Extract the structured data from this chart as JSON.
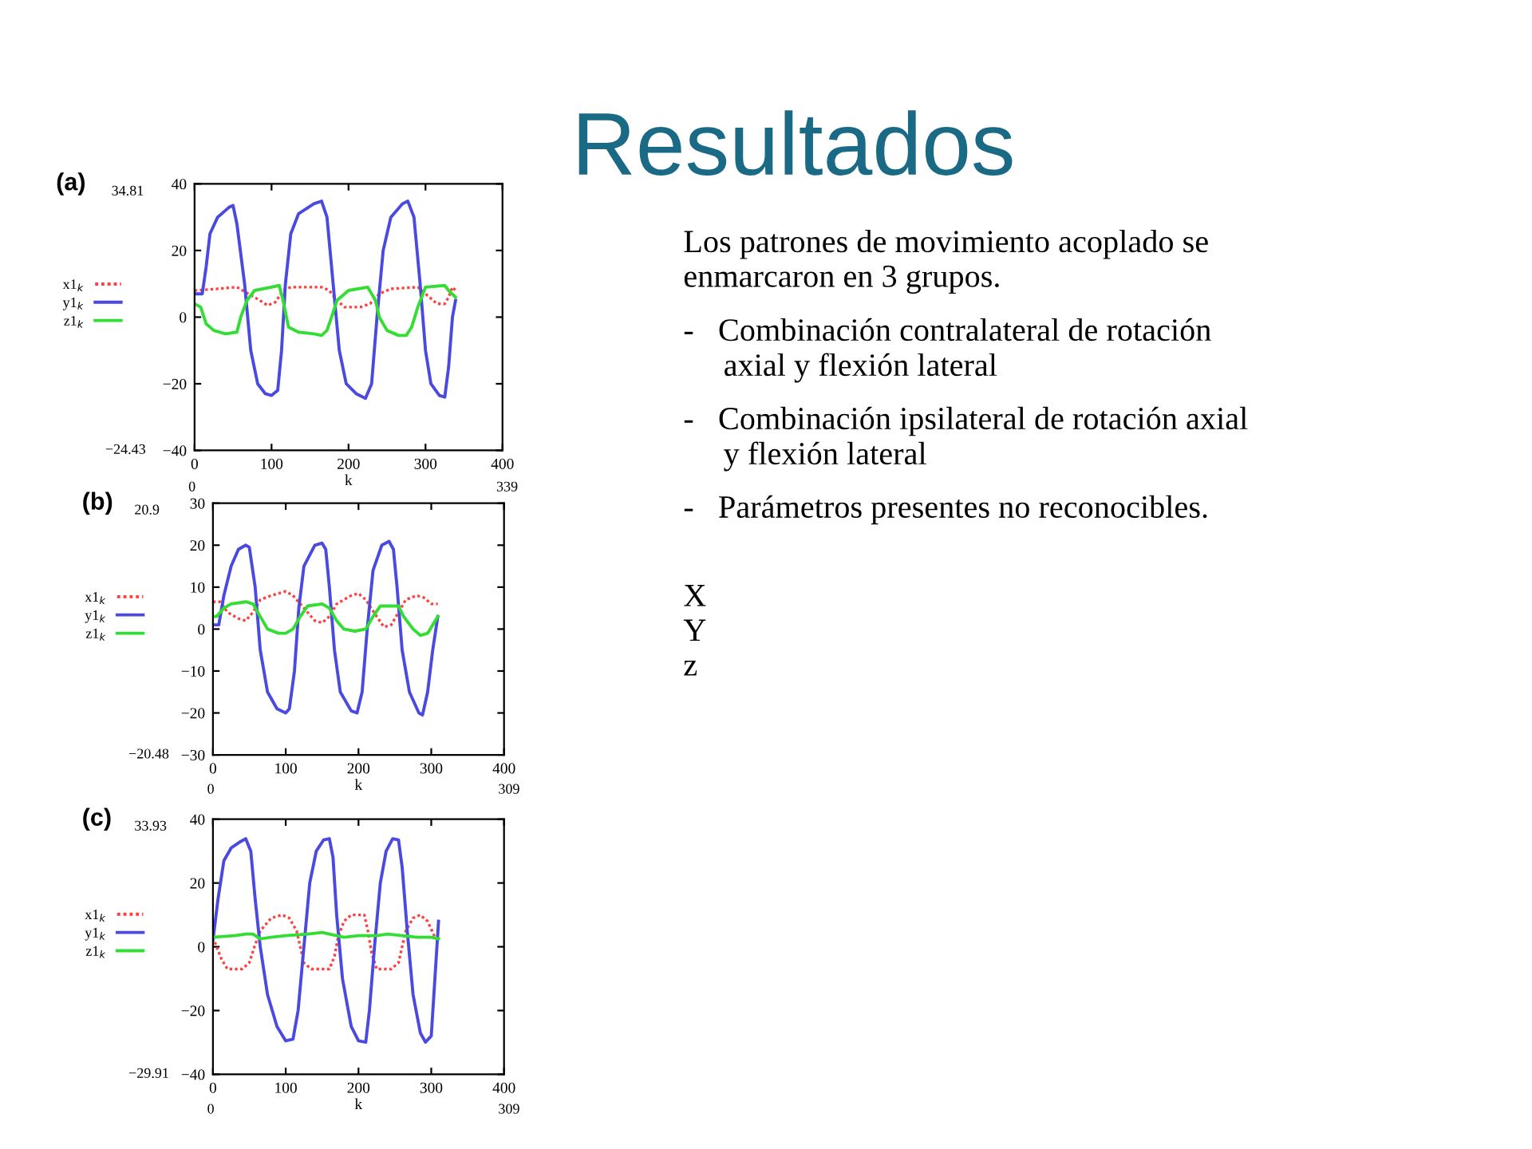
{
  "chart_data": [
    {
      "type": "other",
      "title": "Resultados",
      "color": "#1a6a85",
      "annotations": [
        "Los patrones de movimiento acoplado se\nenmarcaron en 3 grupos.",
        "-   Combinación contralateral de rotación\n     axial y flexión lateral",
        "-   Combinación ipsilateral de rotación axial\n     y flexión lateral",
        "-   Parámetros presentes no reconocibles.",
        "X\nY\nz"
      ]
    },
    {
      "type": "line",
      "xlabel": "k",
      "xlim": [
        0,
        400
      ],
      "xticks": [
        0,
        100,
        200,
        300,
        400
      ],
      "ylim": [
        -40,
        40
      ],
      "yticks": [
        -40,
        -20,
        0,
        20,
        40
      ],
      "legend": "left",
      "marker": "none",
      "annotations": [
        "(a)",
        "34.81",
        "−24.43",
        "0",
        "339"
      ],
      "series": [
        {
          "name": "x1$_{k}$",
          "color": "#ff4040",
          "line_style": "dotted",
          "x": [
            0,
            30,
            55,
            70,
            85,
            95,
            105,
            115,
            125,
            165,
            175,
            185,
            195,
            215,
            228,
            240,
            255,
            290,
            300,
            315,
            325,
            330,
            335,
            339
          ],
          "values": [
            8,
            8.5,
            9,
            7,
            5,
            3.5,
            4.5,
            8,
            9,
            9,
            8,
            5,
            3,
            3,
            4,
            7,
            8.5,
            9,
            7,
            4,
            4,
            6,
            9,
            8
          ]
        },
        {
          "name": "y1$_{k}$",
          "color": "#4a4ae0",
          "line_style": "solid",
          "x": [
            0,
            10,
            15,
            20,
            30,
            45,
            50,
            55,
            65,
            73,
            82,
            92,
            100,
            108,
            113,
            118,
            125,
            135,
            155,
            165,
            172,
            180,
            188,
            197,
            210,
            222,
            230,
            237,
            245,
            255,
            270,
            277,
            285,
            293,
            300,
            307,
            318,
            325,
            330,
            335,
            339
          ],
          "values": [
            7,
            7,
            15,
            25,
            30,
            33,
            33.5,
            28,
            10,
            -10,
            -20,
            -23,
            -23.5,
            -22,
            -10,
            10,
            25,
            31,
            34,
            34.8,
            30,
            10,
            -10,
            -20,
            -23,
            -24.4,
            -20,
            0,
            20,
            30,
            34,
            34.8,
            30,
            10,
            -10,
            -20,
            -23.5,
            -24,
            -15,
            0,
            5
          ]
        },
        {
          "name": "z1$_{k}$",
          "color": "#33dd33",
          "line_style": "solid",
          "x": [
            0,
            8,
            15,
            25,
            40,
            55,
            60,
            68,
            78,
            100,
            110,
            115,
            122,
            135,
            155,
            165,
            172,
            178,
            185,
            200,
            225,
            235,
            240,
            250,
            265,
            275,
            282,
            290,
            300,
            325,
            330,
            339
          ],
          "values": [
            4,
            3,
            -2,
            -4,
            -5,
            -4.5,
            0,
            5,
            8,
            9,
            9.5,
            5,
            -3,
            -4.5,
            -5,
            -5.5,
            -4,
            0,
            5,
            8,
            9,
            5,
            0,
            -4,
            -5.5,
            -5.5,
            -3,
            3,
            9,
            9.5,
            8,
            6
          ]
        }
      ]
    },
    {
      "type": "line",
      "xlabel": "k",
      "xlim": [
        0,
        400
      ],
      "xticks": [
        0,
        100,
        200,
        300,
        400
      ],
      "ylim": [
        -30,
        30
      ],
      "yticks": [
        -30,
        -20,
        -10,
        0,
        10,
        20,
        30
      ],
      "legend": "left",
      "marker": "none",
      "annotations": [
        "(b)",
        "20.9",
        "−20.48",
        "0",
        "309"
      ],
      "series": [
        {
          "name": "x1$_{k}$",
          "color": "#ff4040",
          "line_style": "dotted",
          "x": [
            0,
            10,
            20,
            35,
            45,
            55,
            65,
            80,
            100,
            110,
            125,
            140,
            150,
            160,
            170,
            190,
            200,
            210,
            225,
            235,
            245,
            255,
            265,
            280,
            290,
            300,
            309
          ],
          "values": [
            6.5,
            6.5,
            4,
            2.5,
            2,
            4,
            7,
            8,
            9,
            8,
            5,
            2,
            1.5,
            3,
            6,
            8,
            8.5,
            7,
            3,
            0.5,
            1,
            4,
            7,
            8,
            7.5,
            6,
            6
          ]
        },
        {
          "name": "y1$_{k}$",
          "color": "#4a4ae0",
          "line_style": "solid",
          "x": [
            0,
            8,
            15,
            25,
            35,
            45,
            50,
            58,
            65,
            75,
            88,
            100,
            105,
            112,
            118,
            125,
            140,
            150,
            155,
            160,
            167,
            175,
            190,
            198,
            205,
            212,
            220,
            232,
            242,
            248,
            253,
            260,
            270,
            283,
            288,
            295,
            302,
            309
          ],
          "values": [
            1,
            1,
            8,
            15,
            19,
            20,
            19.5,
            10,
            -5,
            -15,
            -19,
            -20,
            -19,
            -10,
            5,
            15,
            20,
            20.5,
            19,
            10,
            -5,
            -15,
            -19.5,
            -20,
            -15,
            0,
            14,
            20,
            20.9,
            19,
            10,
            -5,
            -15,
            -20,
            -20.5,
            -15,
            -5,
            3
          ]
        },
        {
          "name": "z1$_{k}$",
          "color": "#33dd33",
          "line_style": "solid",
          "x": [
            0,
            5,
            15,
            25,
            45,
            55,
            65,
            75,
            90,
            100,
            110,
            120,
            130,
            150,
            160,
            170,
            180,
            195,
            210,
            220,
            230,
            255,
            262,
            275,
            285,
            295,
            302,
            309
          ],
          "values": [
            3,
            3,
            5,
            6,
            6.5,
            6,
            3,
            0,
            -1,
            -1,
            0,
            3,
            5.5,
            6,
            5,
            2,
            0,
            -0.5,
            0,
            3,
            5.5,
            5.5,
            3,
            0,
            -1.5,
            -1,
            1,
            3
          ]
        }
      ]
    },
    {
      "type": "line",
      "xlabel": "k",
      "xlim": [
        0,
        400
      ],
      "xticks": [
        0,
        100,
        200,
        300,
        400
      ],
      "ylim": [
        -40,
        40
      ],
      "yticks": [
        -40,
        -20,
        0,
        20,
        40
      ],
      "legend": "left",
      "marker": "none",
      "annotations": [
        "(c)",
        "33.93",
        "−29.91",
        "0",
        "309"
      ],
      "series": [
        {
          "name": "x1$_{k}$",
          "color": "#ff4040",
          "line_style": "dotted",
          "x": [
            0,
            5,
            12,
            20,
            40,
            50,
            57,
            65,
            80,
            95,
            105,
            115,
            120,
            125,
            135,
            160,
            167,
            172,
            180,
            190,
            208,
            213,
            218,
            225,
            245,
            255,
            260,
            265,
            275,
            285,
            295,
            305,
            310
          ],
          "values": [
            3,
            0,
            -4,
            -7,
            -7,
            -5,
            0,
            5,
            9,
            10,
            9,
            5,
            0,
            -5,
            -7,
            -7,
            -3,
            3,
            8,
            10,
            10,
            5,
            -2,
            -7,
            -7,
            -5,
            0,
            5,
            9,
            10,
            8,
            3,
            2
          ]
        },
        {
          "name": "y1$_{k}$",
          "color": "#4a4ae0",
          "line_style": "solid",
          "x": [
            0,
            7,
            15,
            25,
            38,
            45,
            52,
            58,
            65,
            75,
            88,
            100,
            110,
            117,
            125,
            133,
            142,
            152,
            160,
            165,
            170,
            178,
            190,
            200,
            210,
            215,
            222,
            230,
            238,
            247,
            255,
            260,
            267,
            275,
            285,
            292,
            300,
            305,
            310
          ],
          "values": [
            2,
            15,
            27,
            31,
            33,
            33.9,
            30,
            15,
            0,
            -15,
            -25,
            -29.5,
            -29,
            -20,
            0,
            20,
            30,
            33.5,
            33.9,
            28,
            10,
            -10,
            -25,
            -29.5,
            -29.9,
            -20,
            0,
            20,
            30,
            33.9,
            33.5,
            25,
            5,
            -15,
            -27,
            -29.9,
            -28,
            -10,
            8
          ]
        },
        {
          "name": "z1$_{k}$",
          "color": "#33dd33",
          "line_style": "solid",
          "x": [
            0,
            30,
            45,
            55,
            65,
            80,
            100,
            130,
            150,
            170,
            180,
            200,
            225,
            240,
            260,
            280,
            300,
            310
          ],
          "values": [
            3,
            3.5,
            4,
            4,
            2.5,
            3,
            3.5,
            4,
            4.5,
            3.5,
            3,
            3.5,
            3.5,
            4,
            3.5,
            3,
            3,
            2.5
          ]
        }
      ]
    }
  ]
}
